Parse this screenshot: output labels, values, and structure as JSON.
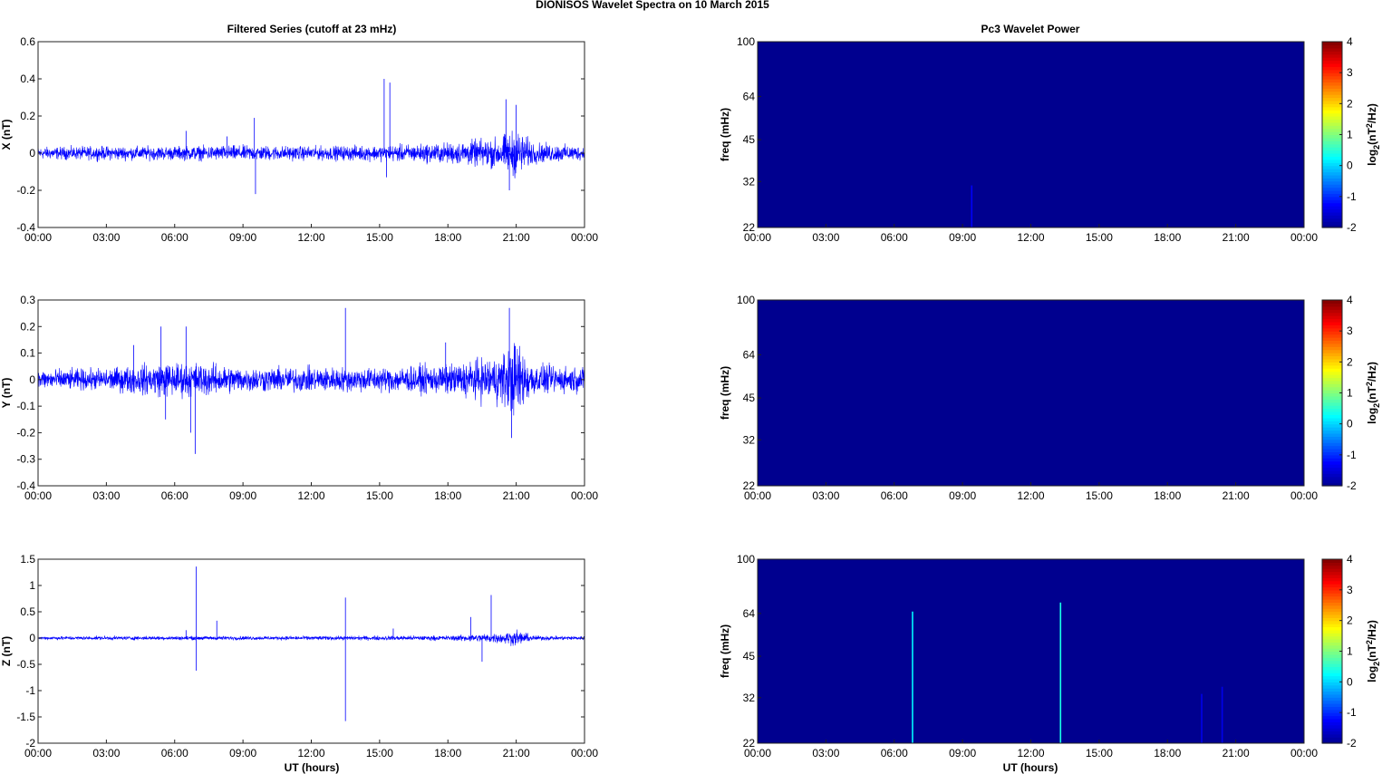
{
  "figure": {
    "suptitle": "DIONISOS Wavelet Spectra on 10 March     2015",
    "left_title": "Filtered Series (cutoff at 23 mHz)",
    "right_title": "Pc3 Wavelet Power",
    "xlabel": "UT (hours)"
  },
  "colors": {
    "trace": "#0000ff",
    "background": "#00008f",
    "colormap": [
      "#00008f",
      "#0000ff",
      "#00ffff",
      "#ffff00",
      "#ff0000",
      "#800000"
    ]
  },
  "chart_data": [
    {
      "type": "line",
      "panel": "X",
      "ylabel": "X (nT)",
      "x_ticks": [
        "00:00",
        "03:00",
        "06:00",
        "09:00",
        "12:00",
        "15:00",
        "18:00",
        "21:00",
        "00:00"
      ],
      "xlim": [
        0,
        24
      ],
      "ylim": [
        -0.4,
        0.6
      ],
      "y_ticks": [
        -0.4,
        -0.2,
        0,
        0.2,
        0.4,
        0.6
      ],
      "noise_level": [
        [
          0,
          0.035
        ],
        [
          3,
          0.04
        ],
        [
          6,
          0.04
        ],
        [
          9,
          0.045
        ],
        [
          12,
          0.04
        ],
        [
          15,
          0.045
        ],
        [
          18,
          0.06
        ],
        [
          20.2,
          0.09
        ],
        [
          21,
          0.14
        ],
        [
          21.8,
          0.06
        ],
        [
          24,
          0.04
        ]
      ],
      "spikes": [
        [
          9.5,
          0.19
        ],
        [
          9.55,
          -0.22
        ],
        [
          15.2,
          0.4
        ],
        [
          15.45,
          0.38
        ],
        [
          15.3,
          -0.13
        ],
        [
          20.55,
          0.29
        ],
        [
          21.0,
          0.26
        ],
        [
          20.7,
          -0.2
        ],
        [
          6.5,
          0.12
        ],
        [
          8.3,
          0.09
        ]
      ]
    },
    {
      "type": "line",
      "panel": "Y",
      "ylabel": "Y (nT)",
      "x_ticks": [
        "00:00",
        "03:00",
        "06:00",
        "09:00",
        "12:00",
        "15:00",
        "18:00",
        "21:00",
        "00:00"
      ],
      "xlim": [
        0,
        24
      ],
      "ylim": [
        -0.4,
        0.3
      ],
      "y_ticks": [
        -0.4,
        -0.3,
        -0.2,
        -0.1,
        0,
        0.1,
        0.2,
        0.3
      ],
      "noise_level": [
        [
          0,
          0.04
        ],
        [
          3,
          0.045
        ],
        [
          5.5,
          0.07
        ],
        [
          7,
          0.07
        ],
        [
          9,
          0.05
        ],
        [
          12,
          0.05
        ],
        [
          15,
          0.05
        ],
        [
          18,
          0.06
        ],
        [
          20.3,
          0.1
        ],
        [
          21,
          0.16
        ],
        [
          21.8,
          0.06
        ],
        [
          24,
          0.05
        ]
      ],
      "spikes": [
        [
          5.4,
          0.2
        ],
        [
          5.6,
          -0.15
        ],
        [
          6.5,
          0.2
        ],
        [
          6.9,
          -0.28
        ],
        [
          6.7,
          -0.2
        ],
        [
          13.5,
          0.27
        ],
        [
          20.7,
          0.27
        ],
        [
          20.8,
          -0.22
        ],
        [
          4.2,
          0.13
        ],
        [
          17.9,
          0.14
        ]
      ]
    },
    {
      "type": "line",
      "panel": "Z",
      "ylabel": "Z (nT)",
      "x_ticks": [
        "00:00",
        "03:00",
        "06:00",
        "09:00",
        "12:00",
        "15:00",
        "18:00",
        "21:00",
        "00:00"
      ],
      "xlim": [
        0,
        24
      ],
      "ylim": [
        -2,
        1.5
      ],
      "y_ticks": [
        -2,
        -1.5,
        -1,
        -0.5,
        0,
        0.5,
        1,
        1.5
      ],
      "noise_level": [
        [
          0,
          0.035
        ],
        [
          6,
          0.04
        ],
        [
          9,
          0.04
        ],
        [
          12,
          0.04
        ],
        [
          18,
          0.05
        ],
        [
          20.2,
          0.1
        ],
        [
          21,
          0.16
        ],
        [
          21.8,
          0.05
        ],
        [
          24,
          0.04
        ]
      ],
      "spikes": [
        [
          6.95,
          1.36
        ],
        [
          6.95,
          -0.62
        ],
        [
          7.85,
          0.33
        ],
        [
          13.5,
          0.77
        ],
        [
          13.5,
          -1.58
        ],
        [
          19.9,
          0.82
        ],
        [
          19.5,
          -0.45
        ],
        [
          19,
          0.4
        ],
        [
          6.5,
          0.15
        ],
        [
          15.6,
          0.18
        ]
      ]
    },
    {
      "type": "heatmap",
      "panel": "X",
      "ylabel": "freq (mHz)",
      "colorbar_label": "log2(nT^2/Hz)",
      "x_ticks": [
        "00:00",
        "03:00",
        "06:00",
        "09:00",
        "12:00",
        "15:00",
        "18:00",
        "21:00",
        "00:00"
      ],
      "ylim": [
        22,
        100
      ],
      "y_ticks": [
        22,
        32,
        45,
        64,
        100
      ],
      "colorbar_range": [
        -2,
        4
      ],
      "colorbar_ticks": [
        -2,
        -1,
        0,
        1,
        2,
        3,
        4
      ],
      "streaks": [
        {
          "t": 9.4,
          "fmax": 31,
          "level": -1.3
        }
      ]
    },
    {
      "type": "heatmap",
      "panel": "Y",
      "ylabel": "freq (mHz)",
      "colorbar_label": "log2(nT^2/Hz)",
      "x_ticks": [
        "00:00",
        "03:00",
        "06:00",
        "09:00",
        "12:00",
        "15:00",
        "18:00",
        "21:00",
        "00:00"
      ],
      "ylim": [
        22,
        100
      ],
      "y_ticks": [
        22,
        32,
        45,
        64,
        100
      ],
      "colorbar_range": [
        -2,
        4
      ],
      "colorbar_ticks": [
        -2,
        -1,
        0,
        1,
        2,
        3,
        4
      ],
      "streaks": []
    },
    {
      "type": "heatmap",
      "panel": "Z",
      "ylabel": "freq (mHz)",
      "colorbar_label": "log2(nT^2/Hz)",
      "x_ticks": [
        "00:00",
        "03:00",
        "06:00",
        "09:00",
        "12:00",
        "15:00",
        "18:00",
        "21:00",
        "00:00"
      ],
      "ylim": [
        22,
        100
      ],
      "y_ticks": [
        22,
        32,
        45,
        64,
        100
      ],
      "colorbar_range": [
        -2,
        4
      ],
      "colorbar_ticks": [
        -2,
        -1,
        0,
        1,
        2,
        3,
        4
      ],
      "streaks": [
        {
          "t": 6.8,
          "fmax": 65,
          "level": 0.2
        },
        {
          "t": 13.3,
          "fmax": 70,
          "level": 0.4
        },
        {
          "t": 19.5,
          "fmax": 33,
          "level": -1.4
        },
        {
          "t": 20.4,
          "fmax": 35,
          "level": -1.4
        }
      ]
    }
  ]
}
